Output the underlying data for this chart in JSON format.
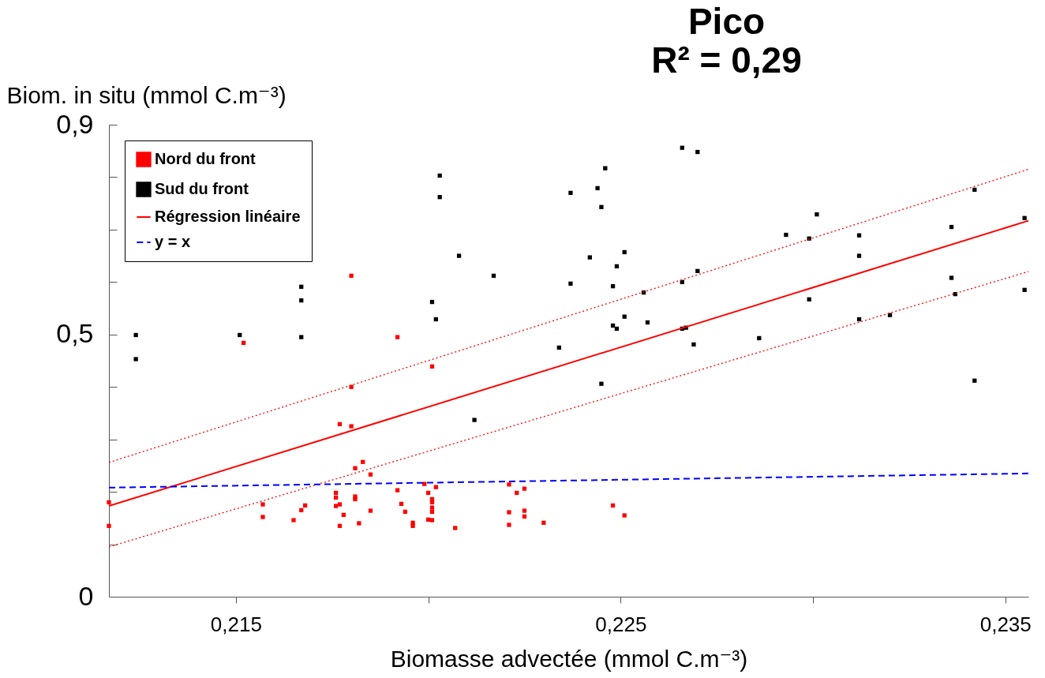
{
  "chart_data": {
    "type": "scatter",
    "title": "Pico",
    "subtitle": "R² = 0,29",
    "xlabel": "Biomasse advectée (mmol C.m⁻³)",
    "ylabel": "Biom. in situ (mmol C.m⁻³)",
    "xlim": [
      0.2117,
      0.2356
    ],
    "xticks": [
      {
        "value": 0.215,
        "label": "0,215"
      },
      {
        "value": 0.22,
        "label": null
      },
      {
        "value": 0.225,
        "label": "0,225"
      },
      {
        "value": 0.23,
        "label": null
      },
      {
        "value": 0.235,
        "label": "0,235"
      }
    ],
    "ylim": [
      0,
      0.9
    ],
    "yticks": [
      0,
      {
        "value": 0.1,
        "label": null
      },
      {
        "value": 0.2,
        "label": null
      },
      {
        "value": 0.3,
        "label": null
      },
      {
        "value": 0.4,
        "label": null
      },
      {
        "value": 0.5,
        "label": "0,5"
      },
      {
        "value": 0.6,
        "label": null
      },
      {
        "value": 0.7,
        "label": null
      },
      {
        "value": 0.8,
        "label": null
      },
      {
        "value": 0.9,
        "label": "0,9"
      }
    ],
    "grid": false,
    "legend": "top left",
    "series": [
      {
        "name": "Nord du front",
        "marker": "square",
        "color": "#ff0000",
        "x": [
          0.2117,
          0.2117,
          0.2152,
          0.2157,
          0.2157,
          0.2165,
          0.2167,
          0.2168,
          0.2176,
          0.2176,
          0.2176,
          0.2177,
          0.2177,
          0.2177,
          0.2178,
          0.218,
          0.218,
          0.218,
          0.2181,
          0.2181,
          0.2181,
          0.2183,
          0.2185,
          0.2182,
          0.2185,
          0.2192,
          0.2192,
          0.2193,
          0.2194,
          0.2196,
          0.2196,
          0.2199,
          0.22,
          0.2201,
          0.2201,
          0.2201,
          0.2201,
          0.22,
          0.2201,
          0.2201,
          0.2202,
          0.2207,
          0.2221,
          0.2221,
          0.2221,
          0.2223,
          0.2225,
          0.2225,
          0.2225,
          0.223,
          0.2248,
          0.2251
        ],
        "values": [
          0.18,
          0.135,
          0.484,
          0.176,
          0.152,
          0.146,
          0.165,
          0.174,
          0.198,
          0.189,
          0.173,
          0.176,
          0.135,
          0.329,
          0.156,
          0.612,
          0.325,
          0.4,
          0.191,
          0.186,
          0.245,
          0.257,
          0.233,
          0.14,
          0.164,
          0.495,
          0.203,
          0.177,
          0.162,
          0.135,
          0.141,
          0.215,
          0.198,
          0.186,
          0.18,
          0.17,
          0.162,
          0.147,
          0.146,
          0.439,
          0.209,
          0.131,
          0.214,
          0.161,
          0.137,
          0.198,
          0.206,
          0.164,
          0.153,
          0.141,
          0.174,
          0.155
        ]
      },
      {
        "name": "Sud du front",
        "marker": "square",
        "color": "#000000",
        "x": [
          0.2124,
          0.2124,
          0.2151,
          0.2167,
          0.2167,
          0.2167,
          0.2203,
          0.2203,
          0.2201,
          0.2202,
          0.2208,
          0.2212,
          0.2217,
          0.2234,
          0.2237,
          0.2237,
          0.2242,
          0.2244,
          0.2245,
          0.2245,
          0.2246,
          0.2248,
          0.2248,
          0.2249,
          0.2249,
          0.2251,
          0.2251,
          0.2256,
          0.2257,
          0.2266,
          0.2266,
          0.2266,
          0.2267,
          0.2269,
          0.227,
          0.227,
          0.2286,
          0.2293,
          0.2299,
          0.2299,
          0.2301,
          0.2312,
          0.2312,
          0.2312,
          0.232,
          0.2336,
          0.2336,
          0.2337,
          0.2342,
          0.2342,
          0.2355,
          0.2355
        ],
        "values": [
          0.499,
          0.453,
          0.499,
          0.495,
          0.591,
          0.565,
          0.803,
          0.762,
          0.562,
          0.529,
          0.65,
          0.337,
          0.612,
          0.475,
          0.77,
          0.597,
          0.647,
          0.779,
          0.743,
          0.406,
          0.817,
          0.592,
          0.517,
          0.511,
          0.63,
          0.657,
          0.534,
          0.58,
          0.523,
          0.856,
          0.6,
          0.511,
          0.513,
          0.481,
          0.848,
          0.621,
          0.493,
          0.69,
          0.567,
          0.683,
          0.729,
          0.689,
          0.65,
          0.529,
          0.537,
          0.705,
          0.608,
          0.577,
          0.776,
          0.412,
          0.722,
          0.585
        ]
      },
      {
        "name": "Régression linéaire",
        "type": "line",
        "color": "#ff0000",
        "line_style": "solid",
        "x": [
          0.2117,
          0.2356
        ],
        "values": [
          0.173,
          0.717
        ]
      },
      {
        "type": "line",
        "color": "#ff0000",
        "line_style": "dotted",
        "x": [
          0.2117,
          0.2356
        ],
        "values": [
          0.256,
          0.815
        ]
      },
      {
        "type": "line",
        "color": "#ff0000",
        "line_style": "dotted",
        "x": [
          0.2117,
          0.2356
        ],
        "values": [
          0.095,
          0.62
        ]
      },
      {
        "name": "y = x",
        "type": "line",
        "color": "#0000ff",
        "line_style": "dashed",
        "x": [
          0.2117,
          0.2356
        ],
        "values": [
          0.208,
          0.235
        ]
      }
    ]
  }
}
